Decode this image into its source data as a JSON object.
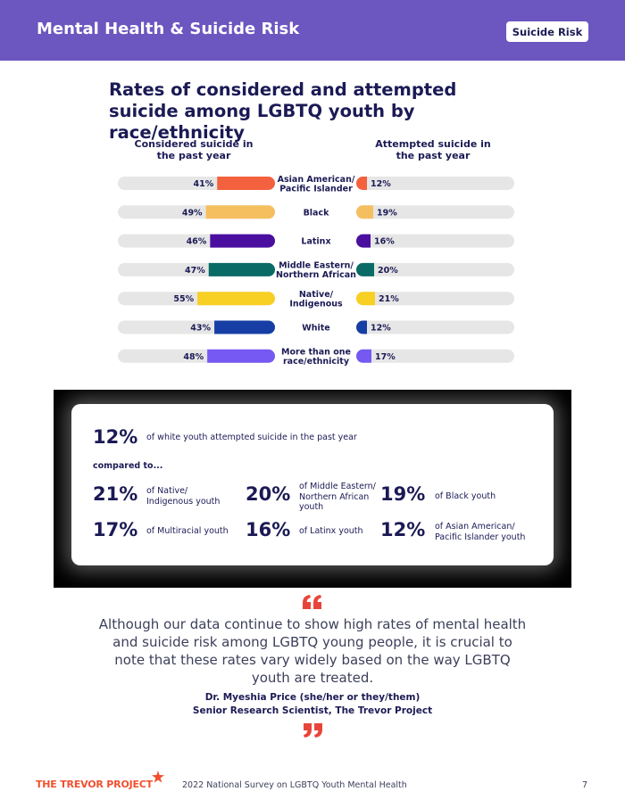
{
  "header": {
    "title": "Mental Health & Suicide Risk",
    "badge": "Suicide Risk",
    "color": "#6c56c0"
  },
  "chart_data": {
    "type": "bar",
    "title": "Rates of considered and attempted suicide among LGBTQ youth by race/ethnicity",
    "left_series_label": "Considered suicide in the past year",
    "right_series_label": "Attempted suicide in the past year",
    "unit": "%",
    "categories": [
      {
        "label_lines": [
          "Asian American/",
          "Pacific Islander"
        ],
        "considered": 41,
        "considered_label": "41%",
        "attempted": 12,
        "attempted_label": "12%",
        "color": "#f4613f"
      },
      {
        "label_lines": [
          "Black"
        ],
        "considered": 49,
        "considered_label": "49%",
        "attempted": 19,
        "attempted_label": "19%",
        "color": "#f5bf5f"
      },
      {
        "label_lines": [
          "Latinx"
        ],
        "considered": 46,
        "considered_label": "46%",
        "attempted": 16,
        "attempted_label": "16%",
        "color": "#4b0fa0"
      },
      {
        "label_lines": [
          "Middle Eastern/",
          "Northern African"
        ],
        "considered": 47,
        "considered_label": "47%",
        "attempted": 20,
        "attempted_label": "20%",
        "color": "#0a6b66"
      },
      {
        "label_lines": [
          "Native/",
          "Indigenous"
        ],
        "considered": 55,
        "considered_label": "55%",
        "attempted": 21,
        "attempted_label": "21%",
        "color": "#f8cf23"
      },
      {
        "label_lines": [
          "White"
        ],
        "considered": 43,
        "considered_label": "43%",
        "attempted": 12,
        "attempted_label": "12%",
        "color": "#173ea5"
      },
      {
        "label_lines": [
          "More than one",
          "race/ethnicity"
        ],
        "considered": 48,
        "considered_label": "48%",
        "attempted": 17,
        "attempted_label": "17%",
        "color": "#7559f2"
      }
    ],
    "track_color": "#e6e6e6",
    "grid": false
  },
  "comparison": {
    "main_value": "12%",
    "main_text": "of white youth attempted suicide in the past year",
    "compared_label": "compared to...",
    "items": [
      {
        "value": "21%",
        "text_lines": [
          "of Native/",
          "Indigenous youth"
        ]
      },
      {
        "value": "20%",
        "text_lines": [
          "of Middle Eastern/",
          "Northern African",
          "youth"
        ]
      },
      {
        "value": "19%",
        "text_lines": [
          "of Black youth"
        ]
      },
      {
        "value": "17%",
        "text_lines": [
          "of Multiracial youth"
        ]
      },
      {
        "value": "16%",
        "text_lines": [
          "of Latinx youth"
        ]
      },
      {
        "value": "12%",
        "text_lines": [
          "of Asian American/",
          "Pacific Islander youth"
        ]
      }
    ]
  },
  "quote": {
    "text": "Although our data continue to show high rates of mental health and suicide risk among LGBTQ young people, it is crucial to note that these rates vary widely based on the way LGBTQ youth are treated.",
    "author": "Dr. Myeshia Price (she/her or they/them)",
    "role": "Senior Research Scientist, The Trevor Project",
    "accent_color": "#e8453a"
  },
  "footer": {
    "logo_text": "THE TREVOR PROJECT",
    "survey": "2022 National Survey on LGBTQ Youth Mental Health",
    "page": "7"
  }
}
